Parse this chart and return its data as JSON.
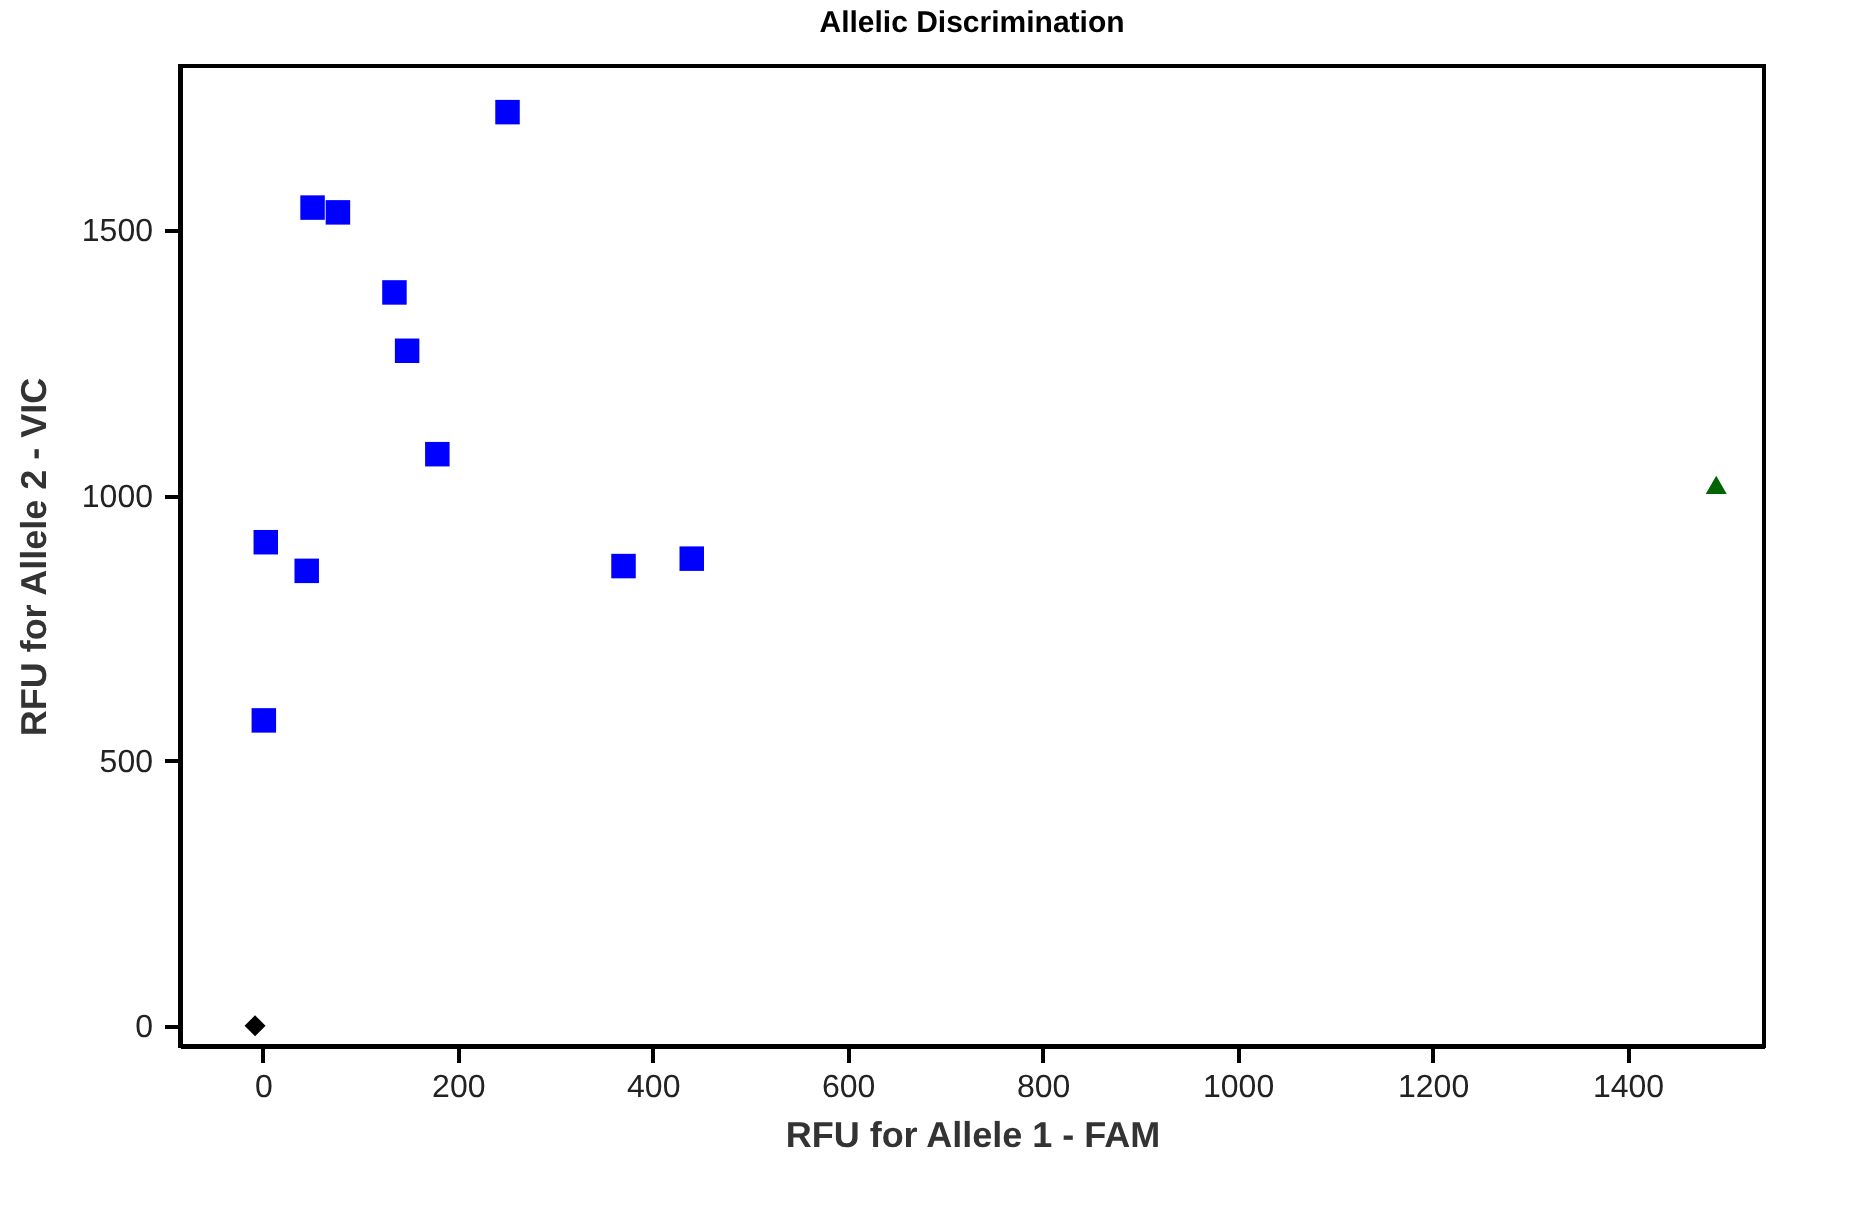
{
  "chart_data": {
    "type": "scatter",
    "title": "Allelic Discrimination",
    "xlabel": "RFU for Allele 1 - FAM",
    "ylabel": "RFU for Allele 2 - VIC",
    "xlim": [
      -85,
      1540
    ],
    "ylim": [
      -38,
      1810
    ],
    "xticks": [
      0,
      200,
      400,
      600,
      800,
      1000,
      1200,
      1400
    ],
    "yticks": [
      0,
      500,
      1000,
      1500
    ],
    "grid": false,
    "series": [
      {
        "color": "#0000ff",
        "marker": "square",
        "x": [
          251,
          51,
          77,
          135,
          148,
          179,
          3,
          45,
          370,
          440,
          1
        ],
        "values": [
          1723,
          1543,
          1534,
          1383,
          1273,
          1078,
          912,
          858,
          867,
          881,
          576
        ]
      },
      {
        "color": "#006400",
        "marker": "triangle",
        "x": [
          1491
        ],
        "values": [
          1020
        ]
      },
      {
        "color": "#000000",
        "marker": "diamond",
        "x": [
          -8
        ],
        "values": [
          0
        ]
      }
    ]
  }
}
